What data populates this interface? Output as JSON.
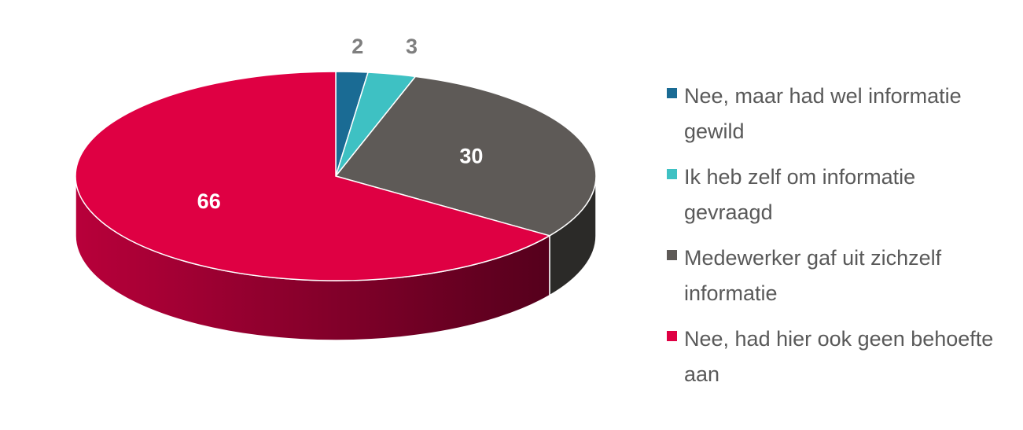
{
  "chart_data": {
    "type": "pie",
    "categories": [
      "Nee, maar had wel informatie gewild",
      "Ik heb zelf om informatie gevraagd",
      "Medewerker gaf uit zichzelf informatie",
      "Nee, had hier ook geen behoefte aan"
    ],
    "values": [
      2,
      3,
      30,
      66
    ],
    "colors": [
      "#1a6b94",
      "#3ec1c3",
      "#5e5a57",
      "#df0043"
    ],
    "side_colors": [
      "#0f4560",
      "#2a8a8c",
      "#2b2a28",
      "#a30030"
    ],
    "legend": "right"
  }
}
